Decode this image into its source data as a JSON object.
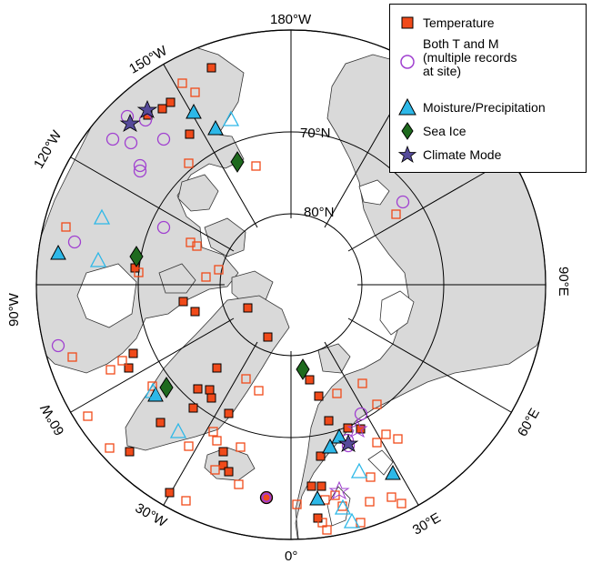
{
  "map": {
    "labels": {
      "lon_top": "180°W",
      "lon_150": "150°W",
      "lon_120": "120°W",
      "lon_90w": "90°W",
      "lon_60w": "60°W",
      "lon_30w": "30°W",
      "lon_0": "0°",
      "lon_30e": "30°E",
      "lon_60e": "60°E",
      "lon_90e": "90°E",
      "lat_70": "70°N",
      "lat_80": "80°N"
    },
    "colors": {
      "land": "#d9d9d9",
      "temperature": "#f04a1a",
      "both": "#a040d0",
      "moisture": "#2db8e8",
      "sea_ice": "#1e6a1e",
      "climate_mode": "#554a9a"
    }
  },
  "legend": {
    "items": [
      {
        "key": "temperature",
        "label": "Temperature"
      },
      {
        "key": "both",
        "label": "Both T and M\n(multiple records\nat site)"
      },
      {
        "key": "moisture",
        "label": "Moisture/Precipitation"
      },
      {
        "key": "sea_ice",
        "label": "Sea Ice"
      },
      {
        "key": "climate_mode",
        "label": "Climate Mode"
      }
    ]
  }
}
